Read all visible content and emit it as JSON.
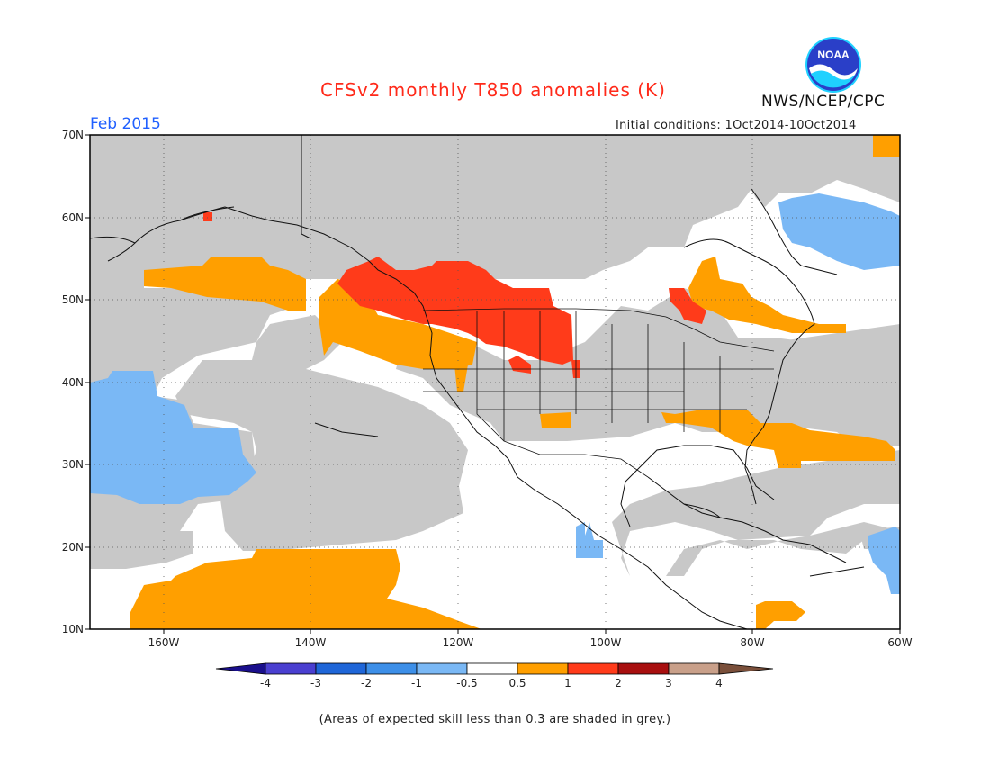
{
  "title": "CFSv2 monthly T850 anomalies (K)",
  "month": "Feb 2015",
  "initial_conditions": "Initial conditions: 1Oct2014-10Oct2014",
  "organization": "NWS/NCEP/CPC",
  "logo_text": "NOAA",
  "note": "(Areas of expected skill less than 0.3 are shaded in grey.)",
  "lat_labels": [
    "70N",
    "60N",
    "50N",
    "40N",
    "30N",
    "20N",
    "10N"
  ],
  "lon_labels": [
    "160W",
    "140W",
    "120W",
    "100W",
    "80W",
    "60W"
  ],
  "colorbar": {
    "tick_labels": [
      "-4",
      "-3",
      "-2",
      "-1",
      "-0.5",
      "0.5",
      "1",
      "2",
      "3",
      "4"
    ],
    "colors": [
      "#1a0f8c",
      "#4a3fd0",
      "#1f66d8",
      "#3d8fe8",
      "#7ab8f5",
      "#ffffff",
      "#ff9f00",
      "#ff3b1a",
      "#a80f0f",
      "#c9a08a",
      "#7a4f3a"
    ]
  },
  "colors": {
    "skill_grey": "#c8c8c8",
    "warm_05_1": "#ff9f00",
    "warm_1_2": "#ff3b1a",
    "cool_05_1": "#7ab8f5"
  }
}
